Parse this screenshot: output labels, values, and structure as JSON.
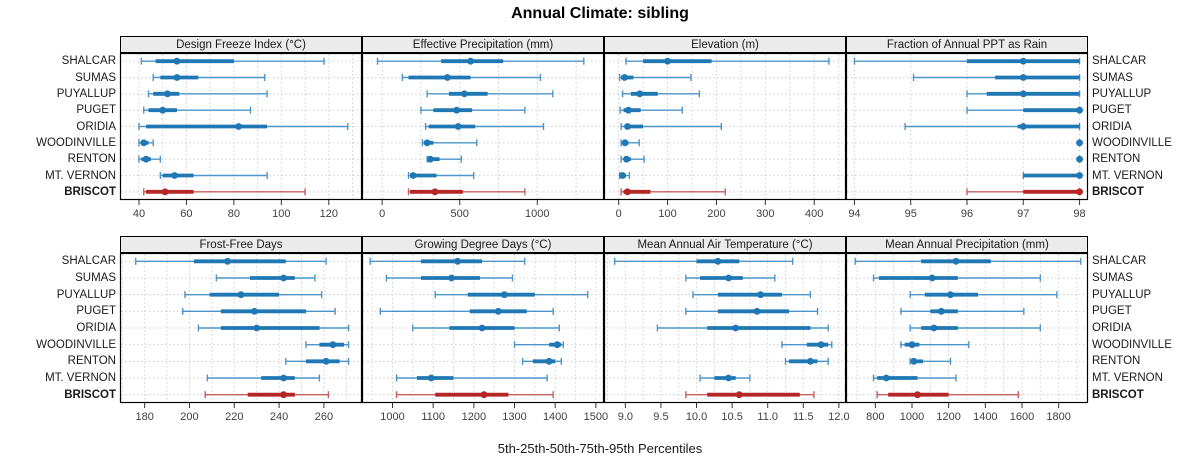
{
  "title": "Annual Climate: sibling",
  "xlabel": "5th-25th-50th-75th-95th Percentiles",
  "categories": [
    "SHALCAR",
    "SUMAS",
    "PUYALLUP",
    "PUGET",
    "ORIDIA",
    "WOODINVILLE",
    "RENTON",
    "MT. VERNON",
    "BRISCOT"
  ],
  "highlight_category": "BRISCOT",
  "percentiles_shown": [
    5,
    25,
    50,
    75,
    95
  ],
  "colors": {
    "blue": "#1f77b4",
    "blue_light": "#4d95c8",
    "red": "#b52626",
    "red_light": "#c45f5f",
    "grid": "#cfcfcf",
    "header_bg": "#ebebeb",
    "border": "#000000",
    "tick_text": "#404040"
  },
  "chart_data": [
    {
      "type": "percentile_range",
      "title": "Design Freeze Index (°C)",
      "xlim": [
        32,
        134
      ],
      "ticks": [
        40,
        60,
        80,
        100,
        120
      ],
      "tick_labels": [
        "40",
        "60",
        "80",
        "100",
        "120"
      ],
      "minor_grid": true,
      "series": [
        {
          "name": "SHALCAR",
          "values": [
            41,
            47,
            56,
            80,
            118
          ]
        },
        {
          "name": "SUMAS",
          "values": [
            46,
            49,
            56,
            65,
            93
          ]
        },
        {
          "name": "PUYALLUP",
          "values": [
            44,
            46,
            52,
            57,
            94
          ]
        },
        {
          "name": "PUGET",
          "values": [
            42,
            44,
            50,
            56,
            87
          ]
        },
        {
          "name": "ORIDIA",
          "values": [
            40,
            43,
            82,
            94,
            128
          ]
        },
        {
          "name": "WOODINVILLE",
          "values": [
            40,
            41,
            42,
            44,
            46
          ]
        },
        {
          "name": "RENTON",
          "values": [
            40,
            41,
            43,
            45,
            49
          ]
        },
        {
          "name": "MT. VERNON",
          "values": [
            49,
            50,
            55,
            63,
            94
          ]
        },
        {
          "name": "BRISCOT",
          "values": [
            42,
            43,
            51,
            63,
            110
          ]
        }
      ]
    },
    {
      "type": "percentile_range",
      "title": "Effective Precipitation (mm)",
      "xlim": [
        -130,
        1430
      ],
      "ticks": [
        0,
        500,
        1000
      ],
      "tick_labels": [
        "0",
        "500",
        "1000"
      ],
      "minor_grid": true,
      "series": [
        {
          "name": "SHALCAR",
          "values": [
            -30,
            380,
            570,
            780,
            1300
          ]
        },
        {
          "name": "SUMAS",
          "values": [
            130,
            170,
            420,
            570,
            1020
          ]
        },
        {
          "name": "PUYALLUP",
          "values": [
            290,
            430,
            530,
            680,
            1100
          ]
        },
        {
          "name": "PUGET",
          "values": [
            250,
            330,
            480,
            580,
            920
          ]
        },
        {
          "name": "ORIDIA",
          "values": [
            280,
            300,
            490,
            600,
            1040
          ]
        },
        {
          "name": "WOODINVILLE",
          "values": [
            260,
            270,
            290,
            330,
            610
          ]
        },
        {
          "name": "RENTON",
          "values": [
            290,
            300,
            310,
            370,
            510
          ]
        },
        {
          "name": "MT. VERNON",
          "values": [
            170,
            180,
            200,
            350,
            590
          ]
        },
        {
          "name": "BRISCOT",
          "values": [
            170,
            180,
            340,
            520,
            920
          ]
        }
      ]
    },
    {
      "type": "percentile_range",
      "title": "Elevation (m)",
      "xlim": [
        -30,
        465
      ],
      "ticks": [
        0,
        100,
        200,
        300,
        400
      ],
      "tick_labels": [
        "0",
        "100",
        "200",
        "300",
        "400"
      ],
      "minor_grid": true,
      "series": [
        {
          "name": "SHALCAR",
          "values": [
            15,
            50,
            100,
            190,
            430
          ]
        },
        {
          "name": "SUMAS",
          "values": [
            2,
            5,
            12,
            30,
            148
          ]
        },
        {
          "name": "PUYALLUP",
          "values": [
            8,
            25,
            43,
            80,
            165
          ]
        },
        {
          "name": "PUGET",
          "values": [
            3,
            10,
            20,
            45,
            130
          ]
        },
        {
          "name": "ORIDIA",
          "values": [
            5,
            15,
            18,
            50,
            210
          ]
        },
        {
          "name": "WOODINVILLE",
          "values": [
            5,
            8,
            13,
            20,
            42
          ]
        },
        {
          "name": "RENTON",
          "values": [
            5,
            10,
            16,
            25,
            52
          ]
        },
        {
          "name": "MT. VERNON",
          "values": [
            2,
            3,
            8,
            15,
            22
          ]
        },
        {
          "name": "BRISCOT",
          "values": [
            5,
            10,
            18,
            65,
            218
          ]
        }
      ]
    },
    {
      "type": "percentile_range",
      "title": "Fraction of Annual PPT as Rain",
      "xlim": [
        93.85,
        98.15
      ],
      "ticks": [
        94,
        95,
        96,
        97,
        98
      ],
      "tick_labels": [
        "94",
        "95",
        "96",
        "97",
        "98"
      ],
      "minor_grid": false,
      "series": [
        {
          "name": "SHALCAR",
          "values": [
            94,
            96,
            97,
            98,
            98
          ]
        },
        {
          "name": "SUMAS",
          "values": [
            95.05,
            96.5,
            97,
            98,
            98
          ]
        },
        {
          "name": "PUYALLUP",
          "values": [
            96,
            96.35,
            97,
            98,
            98
          ]
        },
        {
          "name": "PUGET",
          "values": [
            96,
            97,
            98,
            98,
            98
          ]
        },
        {
          "name": "ORIDIA",
          "values": [
            94.9,
            96.9,
            97,
            98,
            98
          ]
        },
        {
          "name": "WOODINVILLE",
          "values": [
            98,
            98,
            98,
            98,
            98
          ]
        },
        {
          "name": "RENTON",
          "values": [
            98,
            98,
            98,
            98,
            98
          ]
        },
        {
          "name": "MT. VERNON",
          "values": [
            97,
            97,
            98,
            98,
            98
          ]
        },
        {
          "name": "BRISCOT",
          "values": [
            96,
            97,
            98,
            98,
            98
          ]
        }
      ]
    },
    {
      "type": "percentile_range",
      "title": "Frost-Free Days",
      "xlim": [
        169,
        277
      ],
      "ticks": [
        180,
        200,
        220,
        240,
        260
      ],
      "tick_labels": [
        "180",
        "200",
        "220",
        "240",
        "260"
      ],
      "minor_grid": true,
      "series": [
        {
          "name": "SHALCAR",
          "values": [
            176,
            202,
            217,
            243,
            261
          ]
        },
        {
          "name": "SUMAS",
          "values": [
            212,
            227,
            242,
            247,
            256
          ]
        },
        {
          "name": "PUYALLUP",
          "values": [
            198,
            209,
            223,
            240,
            259
          ]
        },
        {
          "name": "PUGET",
          "values": [
            197,
            214,
            229,
            252,
            265
          ]
        },
        {
          "name": "ORIDIA",
          "values": [
            204,
            214,
            230,
            258,
            271
          ]
        },
        {
          "name": "WOODINVILLE",
          "values": [
            252,
            258,
            264,
            269,
            271
          ]
        },
        {
          "name": "RENTON",
          "values": [
            243,
            252,
            261,
            267,
            271
          ]
        },
        {
          "name": "MT. VERNON",
          "values": [
            208,
            232,
            242,
            247,
            258
          ]
        },
        {
          "name": "BRISCOT",
          "values": [
            207,
            226,
            242,
            247,
            262
          ]
        }
      ]
    },
    {
      "type": "percentile_range",
      "title": "Growing Degree Days (°C)",
      "xlim": [
        925,
        1520
      ],
      "ticks": [
        1000,
        1100,
        1200,
        1300,
        1400,
        1500
      ],
      "tick_labels": [
        "1000",
        "1100",
        "1200",
        "1300",
        "1400",
        "1500"
      ],
      "minor_grid": true,
      "series": [
        {
          "name": "SHALCAR",
          "values": [
            945,
            1070,
            1160,
            1220,
            1325
          ]
        },
        {
          "name": "SUMAS",
          "values": [
            985,
            1070,
            1145,
            1215,
            1295
          ]
        },
        {
          "name": "PUYALLUP",
          "values": [
            1105,
            1185,
            1275,
            1350,
            1480
          ]
        },
        {
          "name": "PUGET",
          "values": [
            970,
            1190,
            1260,
            1330,
            1395
          ]
        },
        {
          "name": "ORIDIA",
          "values": [
            1050,
            1140,
            1220,
            1300,
            1410
          ]
        },
        {
          "name": "WOODINVILLE",
          "values": [
            1300,
            1385,
            1405,
            1415,
            1420
          ]
        },
        {
          "name": "RENTON",
          "values": [
            1320,
            1345,
            1385,
            1400,
            1415
          ]
        },
        {
          "name": "MT. VERNON",
          "values": [
            1010,
            1060,
            1095,
            1150,
            1380
          ]
        },
        {
          "name": "BRISCOT",
          "values": [
            1010,
            1105,
            1225,
            1285,
            1395
          ]
        }
      ]
    },
    {
      "type": "percentile_range",
      "title": "Mean Annual Air Temperature (°C)",
      "xlim": [
        8.7,
        12.1
      ],
      "ticks": [
        9.0,
        9.5,
        10.0,
        10.5,
        11.0,
        11.5,
        12.0
      ],
      "tick_labels": [
        "9.0",
        "9.5",
        "10.0",
        "10.5",
        "11.0",
        "11.5",
        "12.0"
      ],
      "minor_grid": true,
      "series": [
        {
          "name": "SHALCAR",
          "values": [
            8.85,
            10.0,
            10.3,
            10.6,
            11.35
          ]
        },
        {
          "name": "SUMAS",
          "values": [
            9.85,
            10.05,
            10.45,
            10.65,
            11.1
          ]
        },
        {
          "name": "PUYALLUP",
          "values": [
            9.95,
            10.3,
            10.9,
            11.2,
            11.6
          ]
        },
        {
          "name": "PUGET",
          "values": [
            9.85,
            10.3,
            10.85,
            11.3,
            11.7
          ]
        },
        {
          "name": "ORIDIA",
          "values": [
            9.45,
            10.15,
            10.55,
            11.6,
            11.85
          ]
        },
        {
          "name": "WOODINVILLE",
          "values": [
            11.2,
            11.55,
            11.75,
            11.85,
            11.9
          ]
        },
        {
          "name": "RENTON",
          "values": [
            11.25,
            11.3,
            11.6,
            11.7,
            11.85
          ]
        },
        {
          "name": "MT. VERNON",
          "values": [
            10.05,
            10.25,
            10.45,
            10.55,
            10.75
          ]
        },
        {
          "name": "BRISCOT",
          "values": [
            9.85,
            10.15,
            10.6,
            11.45,
            11.65
          ]
        }
      ]
    },
    {
      "type": "percentile_range",
      "title": "Mean Annual Precipitation (mm)",
      "xlim": [
        640,
        1960
      ],
      "ticks": [
        800,
        1000,
        1200,
        1400,
        1600,
        1800
      ],
      "tick_labels": [
        "800",
        "1000",
        "1200",
        "1400",
        "1600",
        "1800"
      ],
      "minor_grid": true,
      "series": [
        {
          "name": "SHALCAR",
          "values": [
            690,
            1050,
            1240,
            1430,
            1920
          ]
        },
        {
          "name": "SUMAS",
          "values": [
            790,
            820,
            1110,
            1250,
            1700
          ]
        },
        {
          "name": "PUYALLUP",
          "values": [
            990,
            1070,
            1210,
            1360,
            1790
          ]
        },
        {
          "name": "PUGET",
          "values": [
            940,
            1100,
            1160,
            1250,
            1610
          ]
        },
        {
          "name": "ORIDIA",
          "values": [
            990,
            1050,
            1120,
            1250,
            1700
          ]
        },
        {
          "name": "WOODINVILLE",
          "values": [
            940,
            960,
            1000,
            1040,
            1310
          ]
        },
        {
          "name": "RENTON",
          "values": [
            990,
            1000,
            1010,
            1060,
            1210
          ]
        },
        {
          "name": "MT. VERNON",
          "values": [
            790,
            810,
            860,
            1030,
            1240
          ]
        },
        {
          "name": "BRISCOT",
          "values": [
            810,
            870,
            1030,
            1200,
            1580
          ]
        }
      ]
    }
  ]
}
